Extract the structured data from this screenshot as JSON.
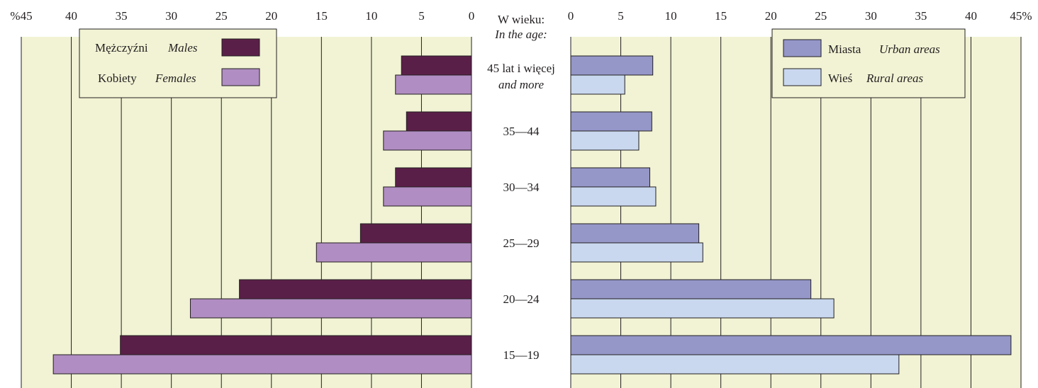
{
  "chart_data": {
    "type": "bar",
    "orientation": "horizontal",
    "axis_header": {
      "pl": "W wieku:",
      "en": "In the age:"
    },
    "categories": [
      {
        "label": "45 lat i więcej",
        "label_en": "and more"
      },
      {
        "label": "35—44"
      },
      {
        "label": "30—34"
      },
      {
        "label": "25—29"
      },
      {
        "label": "20—24"
      },
      {
        "label": "15—19"
      }
    ],
    "panels": [
      {
        "side": "left",
        "xlim": [
          0,
          45
        ],
        "ticks": [
          "%45",
          "40",
          "35",
          "30",
          "25",
          "20",
          "15",
          "10",
          "5",
          "0"
        ],
        "tick_values": [
          45,
          40,
          35,
          30,
          25,
          20,
          15,
          10,
          5,
          0
        ],
        "legend_position": "top-left",
        "series": [
          {
            "name": "Mężczyźni",
            "name_en": "Males",
            "color": "#5a1f48",
            "values": [
              7,
              6.5,
              7.6,
              11.1,
              23.2,
              35.1
            ]
          },
          {
            "name": "Kobiety",
            "name_en": "Females",
            "color": "#b08dc2",
            "values": [
              7.6,
              8.8,
              8.8,
              15.5,
              28.1,
              41.8
            ]
          }
        ]
      },
      {
        "side": "right",
        "xlim": [
          0,
          45
        ],
        "ticks": [
          "0",
          "5",
          "10",
          "15",
          "20",
          "25",
          "30",
          "35",
          "40",
          "45%"
        ],
        "tick_values": [
          0,
          5,
          10,
          15,
          20,
          25,
          30,
          35,
          40,
          45
        ],
        "legend_position": "top-right",
        "series": [
          {
            "name": "Miasta",
            "name_en": "Urban areas",
            "color": "#9597c9",
            "values": [
              8.2,
              8.1,
              7.9,
              12.8,
              24.0,
              44.0
            ]
          },
          {
            "name": "Wieś",
            "name_en": "Rural areas",
            "color": "#c9d8ef",
            "values": [
              5.4,
              6.8,
              8.5,
              13.2,
              26.3,
              32.8
            ]
          }
        ]
      }
    ],
    "grid": true,
    "background": "#f1f3d4"
  }
}
